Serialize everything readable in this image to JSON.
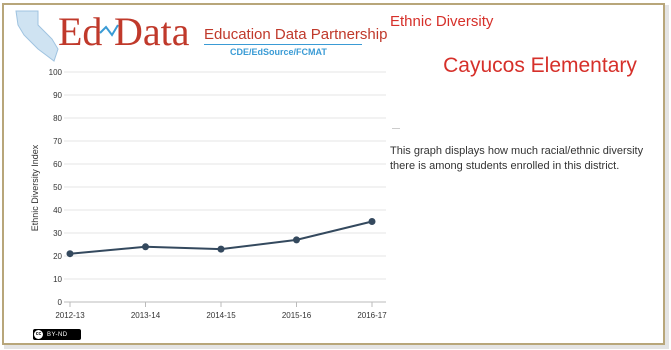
{
  "logo": {
    "word_ed": "Ed",
    "word_data": "Data",
    "tagline": "Education Data Partnership",
    "sub": "CDE/EdSource/FCMAT"
  },
  "panel": {
    "section_title": "Ethnic Diversity",
    "school_name": "Cayucos Elementary",
    "dash": "—",
    "description": "This graph displays how much racial/ethnic diversity there is among students enrolled in this district."
  },
  "license": {
    "cc": "cc",
    "text": "BY-ND"
  },
  "colors": {
    "accent_red": "#d6302a",
    "line": "#34495e",
    "frame": "#b8a67a",
    "sub_blue": "#3a9bd5"
  },
  "chart_data": {
    "type": "line",
    "categories": [
      "2012-13",
      "2013-14",
      "2014-15",
      "2015-16",
      "2016-17"
    ],
    "series": [
      {
        "values": [
          21,
          24,
          23,
          27,
          35
        ]
      }
    ],
    "ylabel": "Ethnic Diversity Index",
    "xlabel": "",
    "ylim": [
      0,
      100
    ],
    "yticks": [
      0,
      10,
      20,
      30,
      40,
      50,
      60,
      70,
      80,
      90,
      100
    ],
    "grid": true
  }
}
